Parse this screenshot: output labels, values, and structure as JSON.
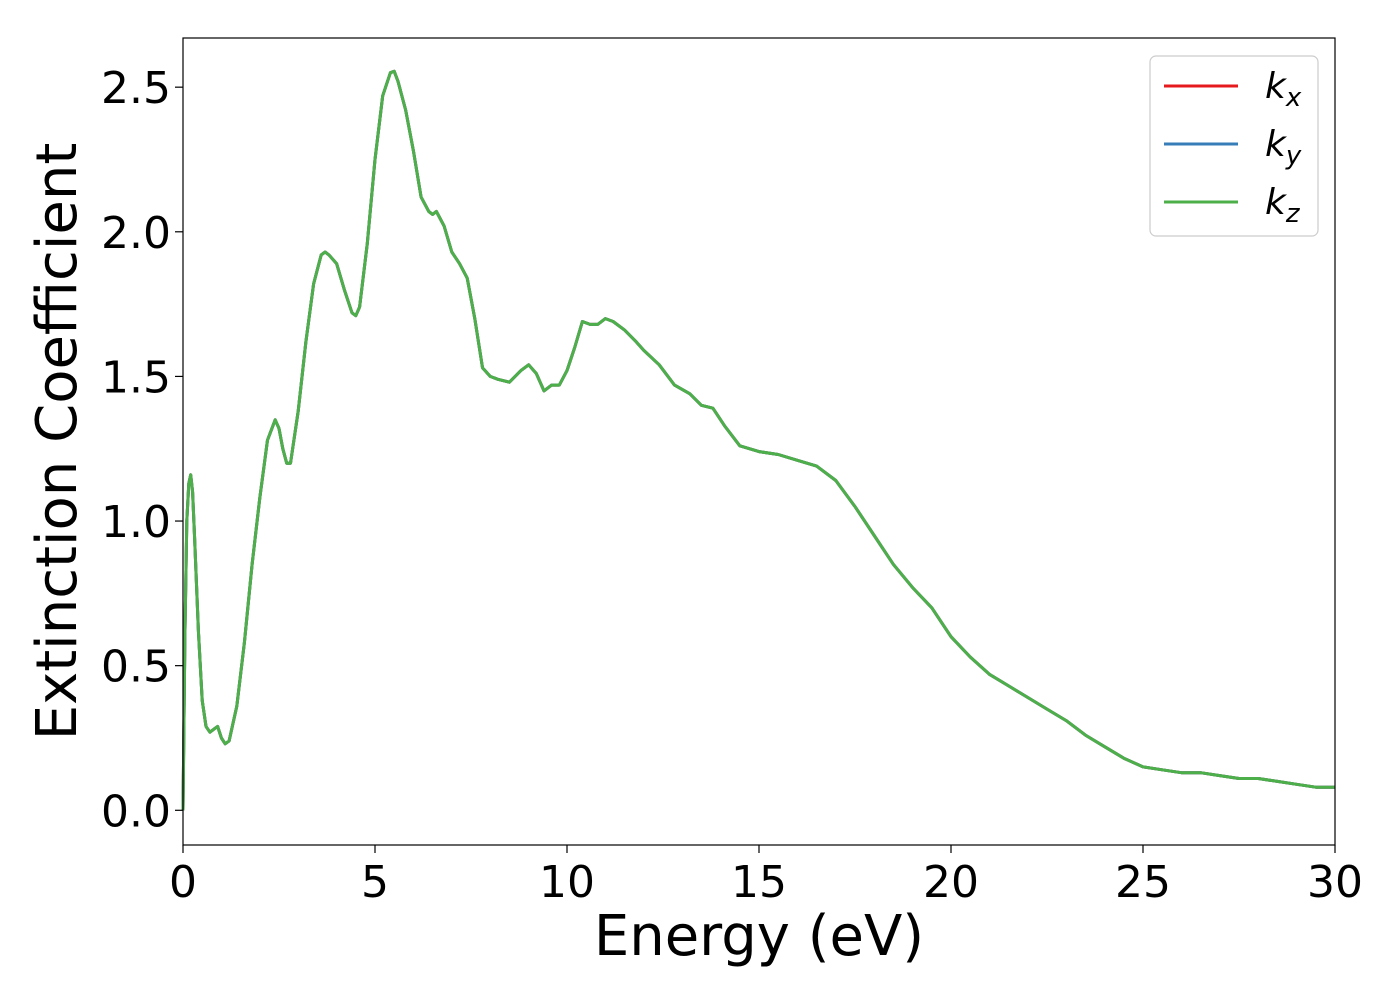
{
  "chart_data": {
    "type": "line",
    "title": "",
    "xlabel": "Energy (eV)",
    "ylabel": "Extinction Coefficient",
    "xlim": [
      0,
      30
    ],
    "ylim": [
      -0.12,
      2.67
    ],
    "xticks": [
      0,
      5,
      10,
      15,
      20,
      25,
      30
    ],
    "xtick_labels": [
      "0",
      "5",
      "10",
      "15",
      "20",
      "25",
      "30"
    ],
    "yticks": [
      0.0,
      0.5,
      1.0,
      1.5,
      2.0,
      2.5
    ],
    "ytick_labels": [
      "0.0",
      "0.5",
      "1.0",
      "1.5",
      "2.0",
      "2.5"
    ],
    "grid": false,
    "legend_position": "top-right",
    "series": [
      {
        "name": "k_x",
        "legend_base": "k",
        "legend_sub": "x",
        "color": "#e41a1c",
        "x": [
          0,
          0.05,
          0.1,
          0.15,
          0.2,
          0.25,
          0.3,
          0.4,
          0.5,
          0.6,
          0.7,
          0.8,
          0.9,
          1.0,
          1.1,
          1.2,
          1.4,
          1.6,
          1.8,
          2.0,
          2.2,
          2.4,
          2.5,
          2.6,
          2.7,
          2.8,
          3.0,
          3.2,
          3.4,
          3.6,
          3.7,
          3.8,
          4.0,
          4.2,
          4.4,
          4.5,
          4.6,
          4.8,
          5.0,
          5.2,
          5.4,
          5.5,
          5.6,
          5.8,
          6.0,
          6.2,
          6.4,
          6.5,
          6.6,
          6.8,
          7.0,
          7.2,
          7.4,
          7.6,
          7.8,
          8.0,
          8.2,
          8.5,
          8.8,
          9.0,
          9.2,
          9.4,
          9.6,
          9.8,
          10.0,
          10.2,
          10.4,
          10.6,
          10.8,
          11.0,
          11.2,
          11.5,
          11.8,
          12.0,
          12.4,
          12.8,
          13.2,
          13.5,
          13.8,
          14.1,
          14.5,
          15.0,
          15.5,
          16.0,
          16.5,
          17.0,
          17.5,
          18.0,
          18.5,
          19.0,
          19.5,
          20.0,
          20.5,
          21.0,
          21.5,
          22.0,
          22.5,
          23.0,
          23.5,
          24.0,
          24.5,
          25.0,
          25.5,
          26.0,
          26.5,
          27.0,
          27.5,
          28.0,
          28.5,
          29.0,
          29.5,
          30.0
        ],
        "y": [
          0.0,
          0.6,
          1.0,
          1.13,
          1.16,
          1.1,
          0.95,
          0.62,
          0.38,
          0.29,
          0.27,
          0.28,
          0.29,
          0.25,
          0.23,
          0.24,
          0.36,
          0.58,
          0.85,
          1.08,
          1.28,
          1.35,
          1.32,
          1.25,
          1.2,
          1.2,
          1.38,
          1.62,
          1.82,
          1.92,
          1.93,
          1.92,
          1.89,
          1.8,
          1.72,
          1.71,
          1.74,
          1.96,
          2.25,
          2.47,
          2.55,
          2.555,
          2.52,
          2.42,
          2.28,
          2.12,
          2.07,
          2.06,
          2.07,
          2.02,
          1.93,
          1.89,
          1.84,
          1.7,
          1.53,
          1.5,
          1.49,
          1.48,
          1.52,
          1.54,
          1.51,
          1.45,
          1.47,
          1.47,
          1.52,
          1.6,
          1.69,
          1.68,
          1.68,
          1.7,
          1.69,
          1.66,
          1.62,
          1.59,
          1.54,
          1.47,
          1.44,
          1.4,
          1.39,
          1.33,
          1.26,
          1.24,
          1.23,
          1.21,
          1.19,
          1.14,
          1.05,
          0.95,
          0.85,
          0.77,
          0.7,
          0.6,
          0.53,
          0.47,
          0.43,
          0.39,
          0.35,
          0.31,
          0.26,
          0.22,
          0.18,
          0.15,
          0.14,
          0.13,
          0.13,
          0.12,
          0.11,
          0.11,
          0.1,
          0.09,
          0.08,
          0.08
        ]
      },
      {
        "name": "k_y",
        "legend_base": "k",
        "legend_sub": "y",
        "color": "#377eb8",
        "same_as": "k_x"
      },
      {
        "name": "k_z",
        "legend_base": "k",
        "legend_sub": "z",
        "color": "#4daf4a",
        "same_as": "k_x"
      }
    ]
  }
}
